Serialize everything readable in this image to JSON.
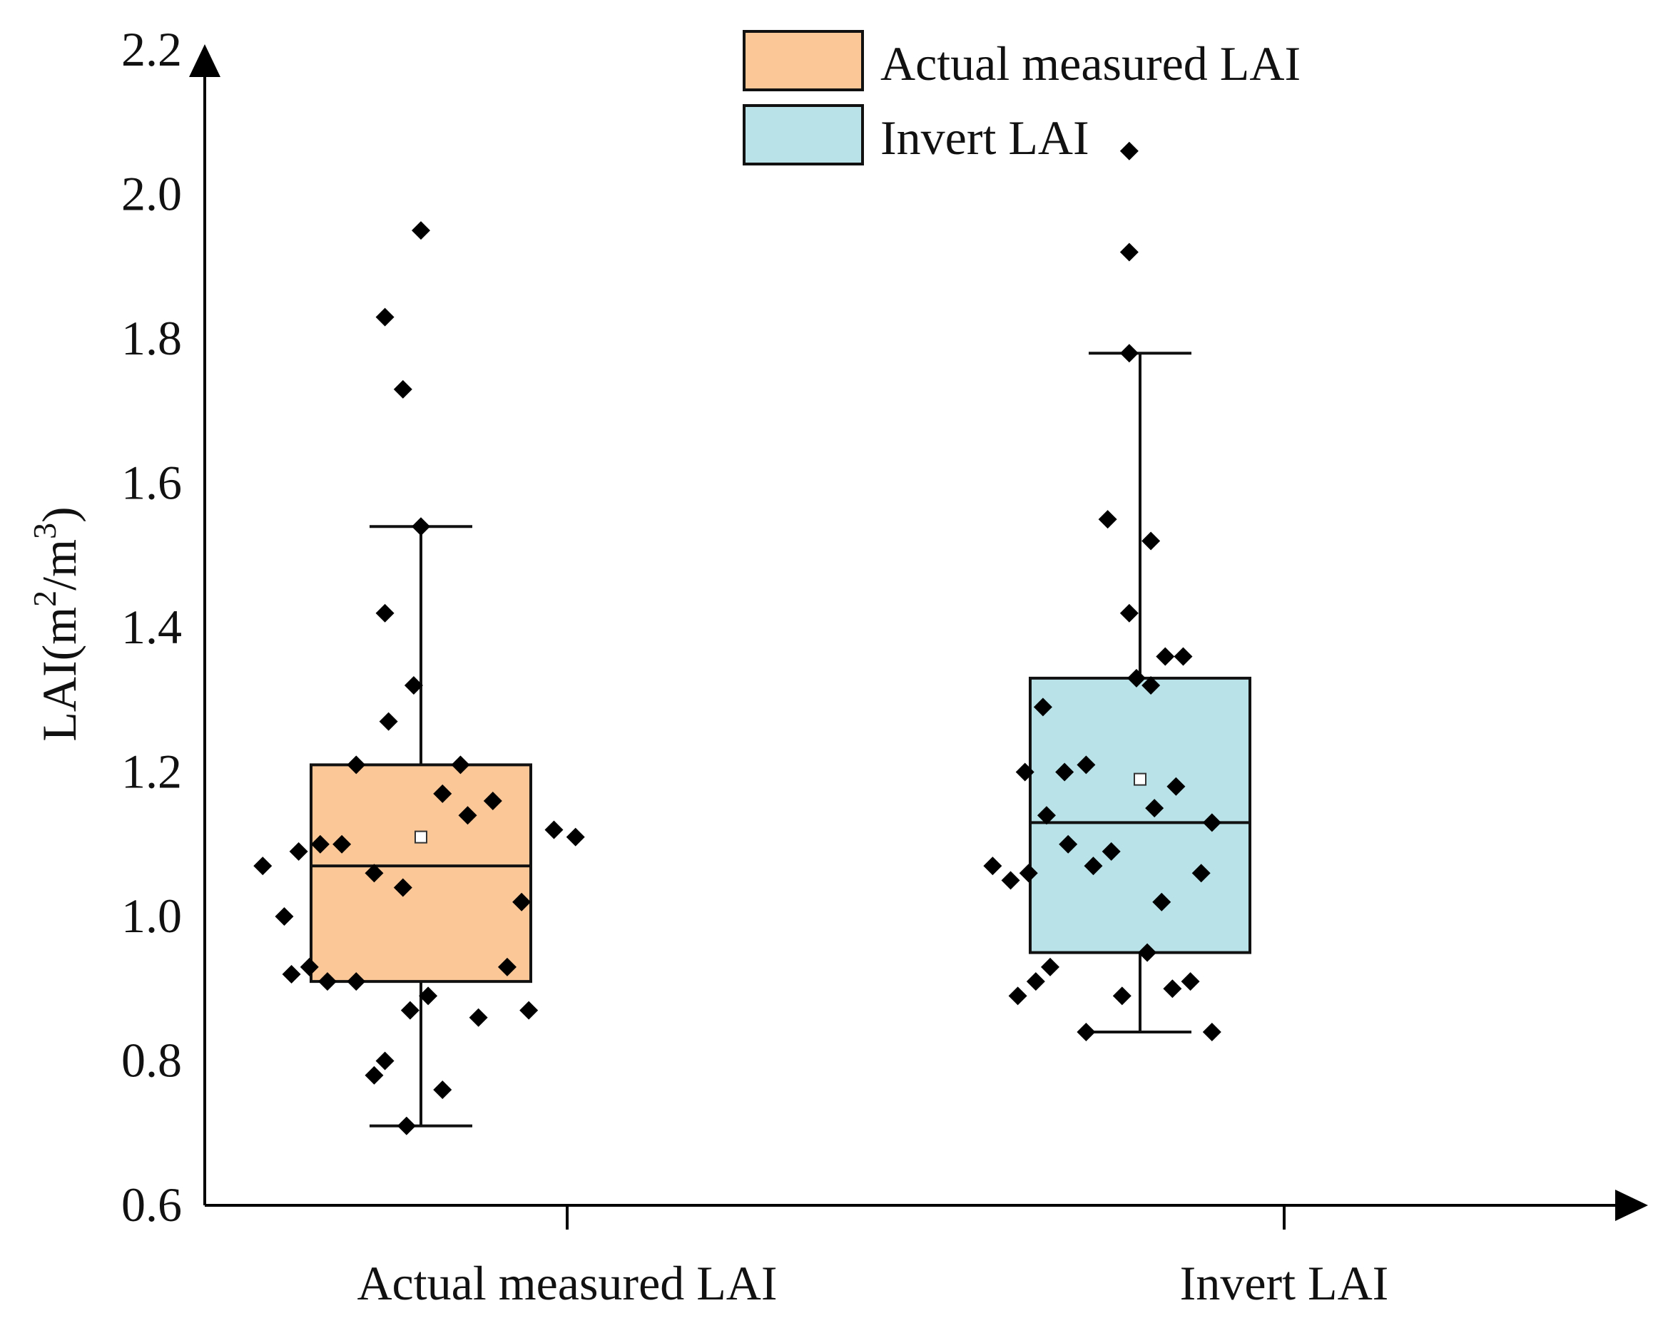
{
  "chart_data": {
    "type": "box",
    "title": "",
    "xlabel": "",
    "ylabel": "LAI(m2/m3)",
    "ylabel_parts": {
      "prefix": "LAI(m",
      "sup1": "2",
      "mid": "/m",
      "sup2": "3",
      "suffix": ")"
    },
    "ylim": [
      0.6,
      2.2
    ],
    "yticks": [
      "0.6",
      "0.8",
      "1.0",
      "1.2",
      "1.4",
      "1.6",
      "1.8",
      "2.0",
      "2.2"
    ],
    "categories": [
      "Actual measured LAI",
      "Invert LAI"
    ],
    "legend": {
      "position": "top-center",
      "entries": [
        {
          "label": "Actual measured LAI",
          "color": "#FBC797"
        },
        {
          "label": "Invert LAI",
          "color": "#B8E2E8"
        }
      ]
    },
    "series": [
      {
        "name": "Actual measured LAI",
        "color": "#FBC797",
        "box": {
          "whisker_low": 0.71,
          "q1": 0.91,
          "median": 1.07,
          "q3": 1.21,
          "whisker_high": 1.54,
          "mean": 1.11
        },
        "points": [
          {
            "x": 1.0,
            "y": 1.95
          },
          {
            "x": 0.95,
            "y": 1.83
          },
          {
            "x": 0.975,
            "y": 1.73
          },
          {
            "x": 1.0,
            "y": 1.54
          },
          {
            "x": 0.95,
            "y": 1.42
          },
          {
            "x": 0.99,
            "y": 1.32
          },
          {
            "x": 0.955,
            "y": 1.27
          },
          {
            "x": 0.91,
            "y": 1.21
          },
          {
            "x": 1.055,
            "y": 1.21
          },
          {
            "x": 1.03,
            "y": 1.17
          },
          {
            "x": 1.1,
            "y": 1.16
          },
          {
            "x": 1.065,
            "y": 1.14
          },
          {
            "x": 1.185,
            "y": 1.12
          },
          {
            "x": 1.215,
            "y": 1.11
          },
          {
            "x": 0.78,
            "y": 1.07
          },
          {
            "x": 0.83,
            "y": 1.09
          },
          {
            "x": 0.86,
            "y": 1.1
          },
          {
            "x": 0.89,
            "y": 1.1
          },
          {
            "x": 0.935,
            "y": 1.06
          },
          {
            "x": 0.975,
            "y": 1.04
          },
          {
            "x": 1.14,
            "y": 1.02
          },
          {
            "x": 0.81,
            "y": 1.0
          },
          {
            "x": 0.82,
            "y": 0.92
          },
          {
            "x": 0.845,
            "y": 0.93
          },
          {
            "x": 0.87,
            "y": 0.91
          },
          {
            "x": 0.91,
            "y": 0.91
          },
          {
            "x": 1.12,
            "y": 0.93
          },
          {
            "x": 1.01,
            "y": 0.89
          },
          {
            "x": 0.985,
            "y": 0.87
          },
          {
            "x": 1.08,
            "y": 0.86
          },
          {
            "x": 1.15,
            "y": 0.87
          },
          {
            "x": 0.95,
            "y": 0.8
          },
          {
            "x": 0.935,
            "y": 0.78
          },
          {
            "x": 1.03,
            "y": 0.76
          },
          {
            "x": 0.98,
            "y": 0.71
          }
        ]
      },
      {
        "name": "Invert LAI",
        "color": "#B8E2E8",
        "box": {
          "whisker_low": 0.84,
          "q1": 0.95,
          "median": 1.13,
          "q3": 1.33,
          "whisker_high": 1.78,
          "mean": 1.19
        },
        "points": [
          {
            "x": 1.985,
            "y": 2.06
          },
          {
            "x": 1.985,
            "y": 1.92
          },
          {
            "x": 1.985,
            "y": 1.78
          },
          {
            "x": 1.955,
            "y": 1.55
          },
          {
            "x": 2.015,
            "y": 1.52
          },
          {
            "x": 1.985,
            "y": 1.42
          },
          {
            "x": 2.035,
            "y": 1.36
          },
          {
            "x": 2.06,
            "y": 1.36
          },
          {
            "x": 1.995,
            "y": 1.33
          },
          {
            "x": 2.015,
            "y": 1.32
          },
          {
            "x": 1.865,
            "y": 1.29
          },
          {
            "x": 1.84,
            "y": 1.2
          },
          {
            "x": 1.895,
            "y": 1.2
          },
          {
            "x": 1.925,
            "y": 1.21
          },
          {
            "x": 2.05,
            "y": 1.18
          },
          {
            "x": 2.02,
            "y": 1.15
          },
          {
            "x": 1.87,
            "y": 1.14
          },
          {
            "x": 2.1,
            "y": 1.13
          },
          {
            "x": 1.795,
            "y": 1.07
          },
          {
            "x": 1.82,
            "y": 1.05
          },
          {
            "x": 1.845,
            "y": 1.06
          },
          {
            "x": 1.9,
            "y": 1.1
          },
          {
            "x": 1.935,
            "y": 1.07
          },
          {
            "x": 1.96,
            "y": 1.09
          },
          {
            "x": 2.085,
            "y": 1.06
          },
          {
            "x": 2.03,
            "y": 1.02
          },
          {
            "x": 2.01,
            "y": 0.95
          },
          {
            "x": 1.875,
            "y": 0.93
          },
          {
            "x": 1.855,
            "y": 0.91
          },
          {
            "x": 1.83,
            "y": 0.89
          },
          {
            "x": 1.975,
            "y": 0.89
          },
          {
            "x": 2.045,
            "y": 0.9
          },
          {
            "x": 2.07,
            "y": 0.91
          },
          {
            "x": 1.925,
            "y": 0.84
          },
          {
            "x": 2.1,
            "y": 0.84
          }
        ]
      }
    ]
  }
}
